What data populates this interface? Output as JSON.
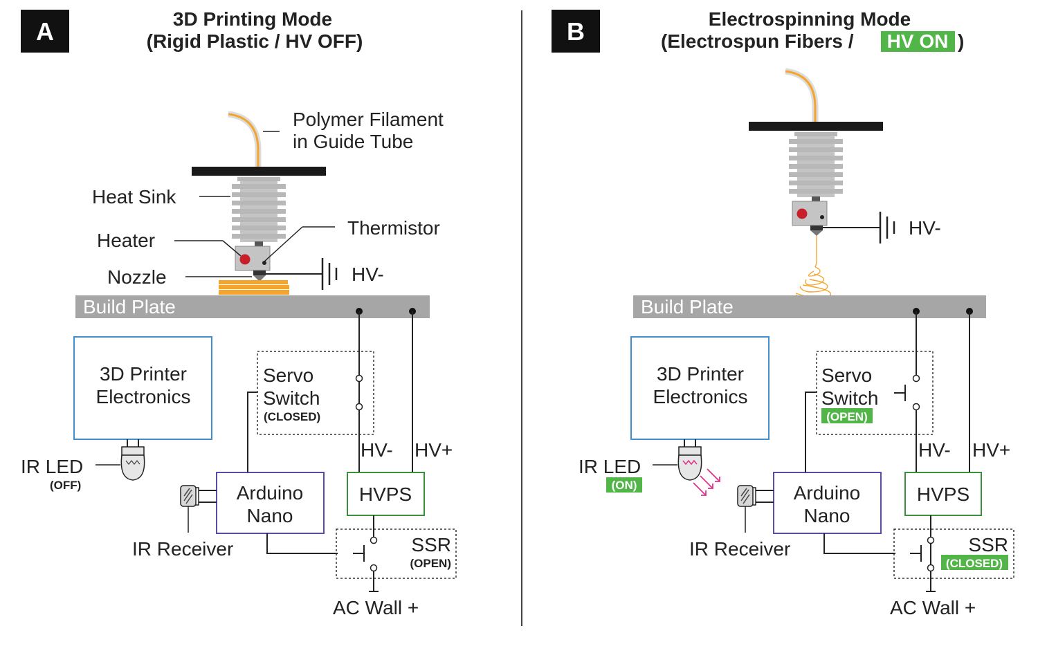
{
  "colors": {
    "panel_label_bg": "#111111",
    "build_plate": "#a6a6a6",
    "heat_sink": "#b8b8b8",
    "heater_block": "#c4c4c4",
    "heater_dot": "#c8202a",
    "filament": "#f4a52e",
    "guide_tube": "#dcdcdc",
    "printed_layers": "#f4a52e",
    "electronics_box": "#3f8fd0",
    "arduino_box": "#5b4aa8",
    "hvps_box": "#3a8f3a",
    "on_state_highlight": "#52b548",
    "ir_beam": "#e0308c",
    "wire": "#222222"
  },
  "icons": {
    "heater": "red-dot",
    "ir_led": "bulb-icon",
    "ir_receiver": "receiver-icon",
    "ground": "ground-symbol",
    "switch": "switch-symbol"
  },
  "panel_a": {
    "label": "A",
    "title_line1": "3D Printing Mode",
    "title_line2": "(Rigid Plastic / HV OFF)",
    "filament_label_line1": "Polymer Filament",
    "filament_label_line2": "in Guide Tube",
    "heat_sink_label": "Heat Sink",
    "thermistor_label": "Thermistor",
    "heater_label": "Heater",
    "nozzle_label": "Nozzle",
    "hv_minus_ground": "HV-",
    "build_plate": "Build Plate",
    "electronics_line1": "3D Printer",
    "electronics_line2": "Electronics",
    "servo_line1": "Servo",
    "servo_line2": "Switch",
    "servo_state": "(CLOSED)",
    "hv_minus": "HV-",
    "hv_plus": "HV+",
    "hvps": "HVPS",
    "ir_led": "IR LED",
    "ir_led_state": "(OFF)",
    "arduino_line1": "Arduino",
    "arduino_line2": "Nano",
    "ir_receiver": "IR Receiver",
    "ssr": "SSR",
    "ssr_state": "(OPEN)",
    "ac_wall": "AC Wall +"
  },
  "panel_b": {
    "label": "B",
    "title_line1": "Electrospinning Mode",
    "title_line2_prefix": "(Electrospun Fibers /",
    "title_line2_hv": "HV ON",
    "title_line2_suffix": ")",
    "hv_minus_ground": "HV-",
    "build_plate": "Build Plate",
    "electronics_line1": "3D Printer",
    "electronics_line2": "Electronics",
    "servo_line1": "Servo",
    "servo_line2": "Switch",
    "servo_state": "(OPEN)",
    "hv_minus": "HV-",
    "hv_plus": "HV+",
    "hvps": "HVPS",
    "ir_led": "IR LED",
    "ir_led_state": "(ON)",
    "arduino_line1": "Arduino",
    "arduino_line2": "Nano",
    "ir_receiver": "IR Receiver",
    "ssr": "SSR",
    "ssr_state": "(CLOSED)",
    "ac_wall": "AC Wall +"
  }
}
